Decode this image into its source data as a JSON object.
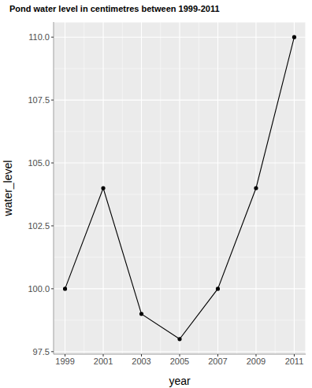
{
  "chart_data": {
    "type": "line",
    "title": "Pond water level in centimetres between 1999-2011",
    "x_label": "year",
    "y_label": "water_level",
    "x": [
      1999,
      2001,
      2003,
      2005,
      2007,
      2009,
      2011
    ],
    "values": [
      100,
      104,
      99,
      98,
      100,
      104,
      110
    ],
    "color": "#000000",
    "marker": "circle",
    "line_style": "solid",
    "xlim": [
      1998.4,
      2011.6
    ],
    "ylim": [
      97.4,
      110.6
    ],
    "xticks": [
      1999,
      2001,
      2003,
      2005,
      2007,
      2009,
      2011
    ],
    "yticks": [
      97.5,
      {
        "value": 100,
        "label": "100.0"
      },
      102.5,
      {
        "value": 105,
        "label": "105.0"
      },
      107.5,
      {
        "value": 110,
        "label": "110.0"
      }
    ],
    "grid": true
  }
}
